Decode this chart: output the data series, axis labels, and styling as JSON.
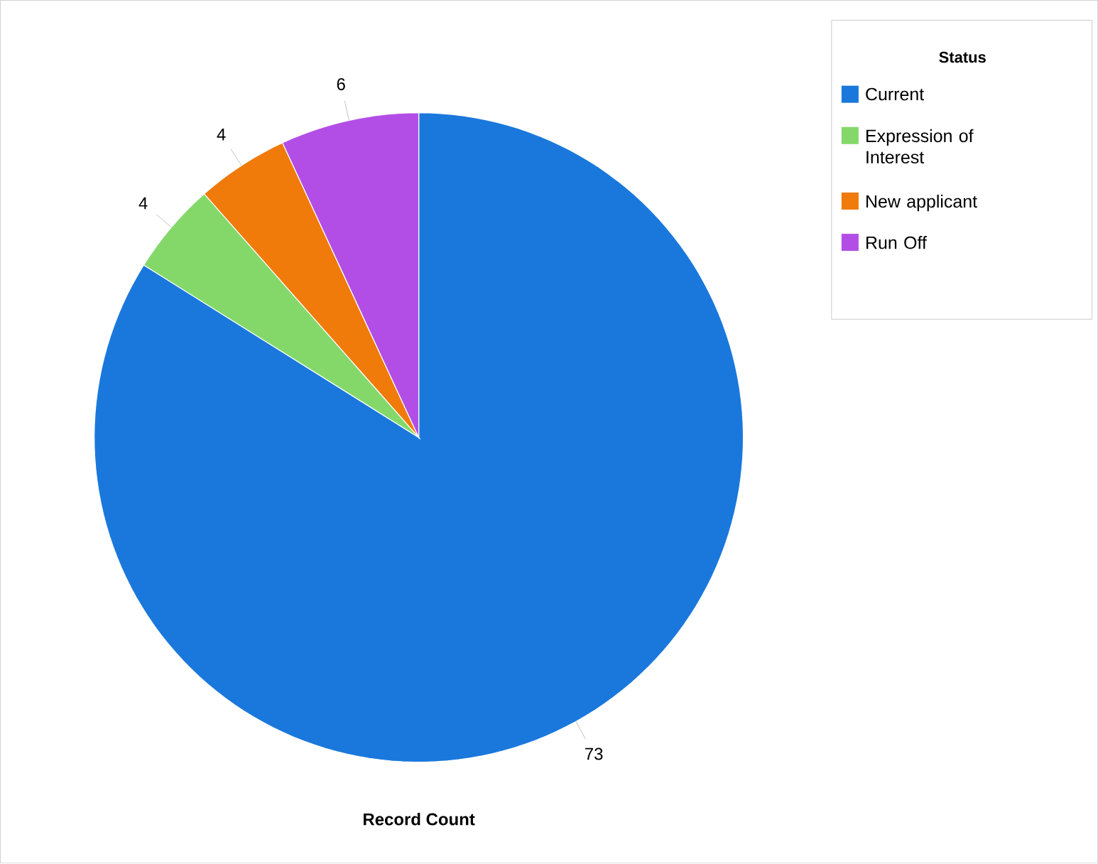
{
  "chart_data": {
    "type": "pie",
    "xlabel": "Record Count",
    "legend_title": "Status",
    "legend": "top right",
    "data_labels": true,
    "categories": [
      "Current",
      "Expression of Interest",
      "New applicant",
      "Run Off"
    ],
    "values": [
      73,
      4,
      4,
      6
    ],
    "colors": [
      "#1a78dc",
      "#84d86a",
      "#f07a0a",
      "#b24ee6"
    ]
  }
}
